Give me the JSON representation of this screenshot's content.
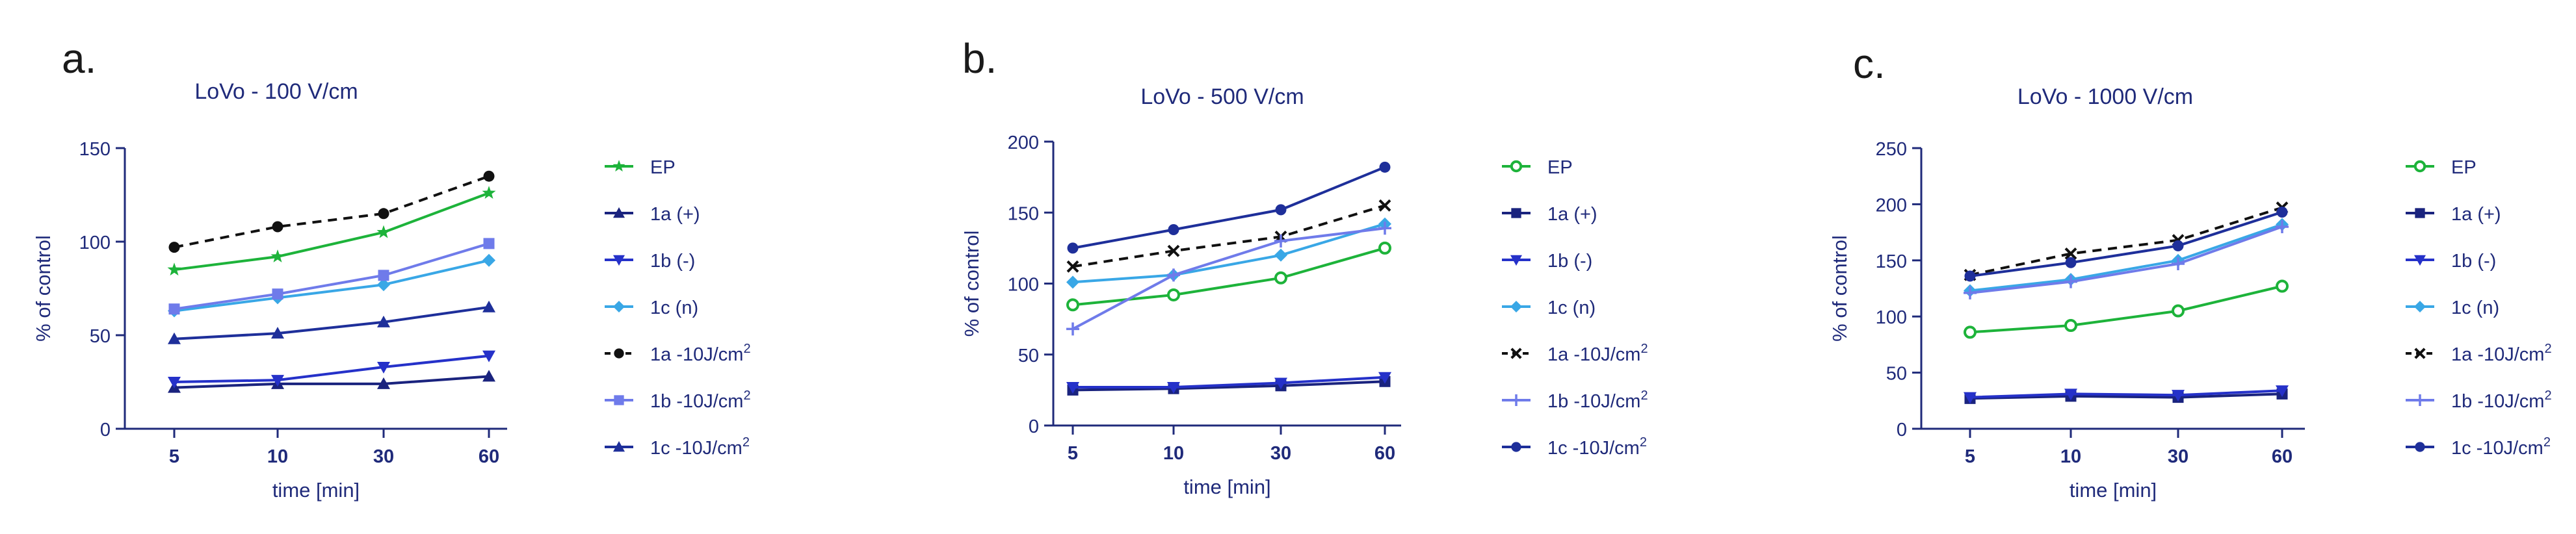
{
  "figure": {
    "description_colors": {
      "axis": "#1f2a7a",
      "text_dark": "#1a1a1a",
      "grid": "none"
    }
  },
  "chart_data": [
    {
      "panel_label": "a.",
      "type": "line",
      "title": "LoVo - 100 V/cm",
      "xlabel": "time [min]",
      "ylabel": "% of control",
      "categories": [
        "5",
        "10",
        "30",
        "60"
      ],
      "ylim": [
        0,
        150
      ],
      "yticks": [
        0,
        50,
        100,
        150
      ],
      "legend_position": "right",
      "series": [
        {
          "name": "EP",
          "color": "#1db33a",
          "marker": "star",
          "dash": false,
          "values": [
            85,
            92,
            105,
            126
          ]
        },
        {
          "name": "1a (+)",
          "color": "#1a237e",
          "marker": "triangle-up",
          "dash": false,
          "values": [
            22,
            24,
            24,
            28
          ]
        },
        {
          "name": "1b (-)",
          "color": "#2531c9",
          "marker": "triangle-down",
          "dash": false,
          "values": [
            25,
            26,
            33,
            39
          ]
        },
        {
          "name": "1c (n)",
          "color": "#39a7e6",
          "marker": "diamond",
          "dash": false,
          "values": [
            63,
            70,
            77,
            90
          ]
        },
        {
          "name": "1a -10J/cm",
          "sup": "2",
          "color": "#111111",
          "marker": "circle",
          "dash": true,
          "values": [
            97,
            108,
            115,
            135
          ]
        },
        {
          "name": "1b -10J/cm",
          "sup": "2",
          "color": "#6f7bea",
          "marker": "square",
          "dash": false,
          "values": [
            64,
            72,
            82,
            99
          ]
        },
        {
          "name": "1c -10J/cm",
          "sup": "2",
          "color": "#1e2f9a",
          "marker": "triangle-up",
          "dash": false,
          "values": [
            48,
            51,
            57,
            65
          ]
        }
      ]
    },
    {
      "panel_label": "b.",
      "type": "line",
      "title": "LoVo - 500 V/cm",
      "xlabel": "time [min]",
      "ylabel": "% of control",
      "categories": [
        "5",
        "10",
        "30",
        "60"
      ],
      "ylim": [
        0,
        200
      ],
      "yticks": [
        0,
        50,
        100,
        150,
        200
      ],
      "legend_position": "right",
      "series": [
        {
          "name": "EP",
          "color": "#1db33a",
          "marker": "circle-open",
          "dash": false,
          "values": [
            85,
            92,
            104,
            125
          ]
        },
        {
          "name": "1a (+)",
          "color": "#1a237e",
          "marker": "square",
          "dash": false,
          "values": [
            25,
            26,
            28,
            31
          ]
        },
        {
          "name": "1b (-)",
          "color": "#2531c9",
          "marker": "triangle-down",
          "dash": false,
          "values": [
            27,
            27,
            30,
            34
          ]
        },
        {
          "name": "1c (n)",
          "color": "#39a7e6",
          "marker": "diamond",
          "dash": false,
          "values": [
            101,
            106,
            120,
            142
          ]
        },
        {
          "name": "1a -10J/cm",
          "sup": "2",
          "color": "#111111",
          "marker": "cross",
          "dash": true,
          "values": [
            112,
            123,
            133,
            155
          ]
        },
        {
          "name": "1b -10J/cm",
          "sup": "2",
          "color": "#6f7bea",
          "marker": "plus",
          "dash": false,
          "values": [
            68,
            106,
            130,
            139
          ]
        },
        {
          "name": "1c -10J/cm",
          "sup": "2",
          "color": "#1e2f9a",
          "marker": "circle",
          "dash": false,
          "values": [
            125,
            138,
            152,
            182
          ]
        }
      ]
    },
    {
      "panel_label": "c.",
      "type": "line",
      "title": "LoVo - 1000 V/cm",
      "xlabel": "time [min]",
      "ylabel": "% of control",
      "categories": [
        "5",
        "10",
        "30",
        "60"
      ],
      "ylim": [
        0,
        250
      ],
      "yticks": [
        0,
        50,
        100,
        150,
        200,
        250
      ],
      "legend_position": "right",
      "series": [
        {
          "name": "EP",
          "color": "#1db33a",
          "marker": "circle-open",
          "dash": false,
          "values": [
            86,
            92,
            105,
            127
          ]
        },
        {
          "name": "1a (+)",
          "color": "#1a237e",
          "marker": "square",
          "dash": false,
          "values": [
            27,
            29,
            28,
            31
          ]
        },
        {
          "name": "1b (-)",
          "color": "#2531c9",
          "marker": "triangle-down",
          "dash": false,
          "values": [
            28,
            31,
            30,
            34
          ]
        },
        {
          "name": "1c (n)",
          "color": "#39a7e6",
          "marker": "diamond",
          "dash": false,
          "values": [
            123,
            133,
            150,
            182
          ]
        },
        {
          "name": "1a -10J/cm",
          "sup": "2",
          "color": "#111111",
          "marker": "cross",
          "dash": true,
          "values": [
            137,
            156,
            168,
            197
          ]
        },
        {
          "name": "1b -10J/cm",
          "sup": "2",
          "color": "#6f7bea",
          "marker": "plus",
          "dash": false,
          "values": [
            121,
            131,
            147,
            180
          ]
        },
        {
          "name": "1c -10J/cm",
          "sup": "2",
          "color": "#1e2f9a",
          "marker": "circle",
          "dash": false,
          "values": [
            136,
            148,
            163,
            193
          ]
        }
      ]
    }
  ]
}
